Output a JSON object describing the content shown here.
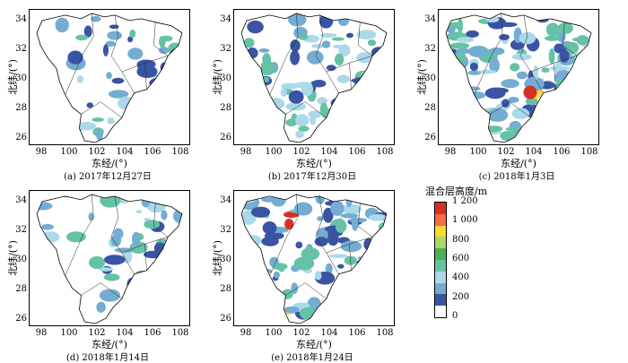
{
  "axis": {
    "ylabel": "北纬/(°)",
    "xlabel": "东经/(°)",
    "yticks": [
      "34",
      "32",
      "30",
      "28",
      "26"
    ],
    "xticks": [
      "98",
      "100",
      "102",
      "104",
      "106",
      "108"
    ]
  },
  "panels": [
    {
      "caption": "(a) 2017年12月27日"
    },
    {
      "caption": "(b) 2017年12月30日"
    },
    {
      "caption": "(c) 2018年1月3日"
    },
    {
      "caption": "(d) 2018年1月14日"
    },
    {
      "caption": "(e) 2018年1月24日"
    }
  ],
  "legend": {
    "title": "混合层高度/m",
    "labels": [
      "1 200",
      "1 000",
      "800",
      "600",
      "400",
      "200",
      "0"
    ],
    "colors": [
      "#d73027",
      "#f46d43",
      "#fdd835",
      "#a6d96a",
      "#4caf50",
      "#66c2a5",
      "#abd9e9",
      "#74add1",
      "#3a54a4",
      "#ffffff"
    ]
  }
}
